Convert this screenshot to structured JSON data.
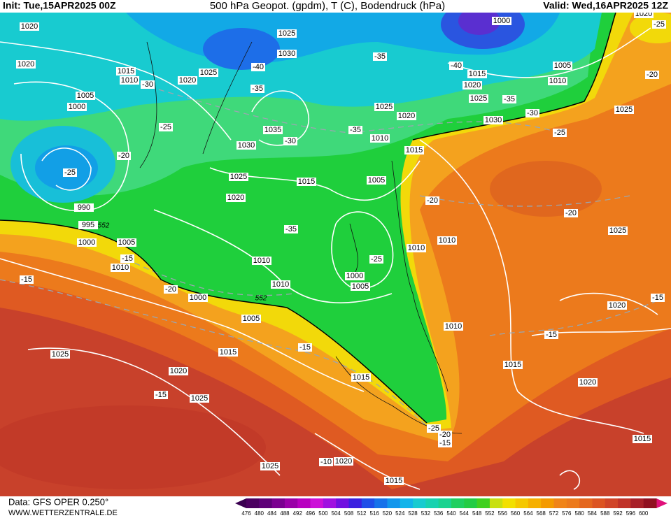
{
  "header": {
    "init": "Init: Tue,15APR2025 00Z",
    "title": "500 hPa Geopot. (gpdm), T (C), Bodendruck (hPa)",
    "valid": "Valid: Wed,16APR2025 12Z"
  },
  "footer": {
    "source": "Data: GFS OPER 0.250°",
    "site": "WWW.WETTERZENTRALE.DE"
  },
  "colorbar": {
    "labels": [
      "476",
      "480",
      "484",
      "488",
      "492",
      "496",
      "500",
      "504",
      "508",
      "512",
      "516",
      "520",
      "524",
      "528",
      "532",
      "536",
      "540",
      "544",
      "548",
      "552",
      "556",
      "560",
      "564",
      "568",
      "572",
      "576",
      "580",
      "584",
      "588",
      "592",
      "596",
      "600"
    ]
  },
  "map": {
    "pressure_labels": [
      "1020",
      "1025",
      "1030",
      "1000",
      "1020",
      "1020",
      "1015",
      "1010",
      "1025",
      "1020",
      "1005",
      "1015",
      "1010",
      "1020",
      "1025",
      "1005",
      "1000",
      "1025",
      "1020",
      "1030",
      "1025",
      "1035",
      "1030",
      "1010",
      "1015",
      "1025",
      "1015",
      "1005",
      "1020",
      "990",
      "995",
      "1025",
      "1010",
      "1000",
      "1005",
      "1010",
      "1010",
      "1010",
      "1000",
      "1005",
      "1010",
      "1000",
      "1020",
      "1005",
      "1010",
      "1015",
      "1025",
      "1015",
      "1020",
      "1015",
      "1020",
      "1025",
      "1015",
      "1025",
      "1020",
      "1015"
    ],
    "temperature_labels": [
      "-25",
      "-20",
      "-35",
      "-40",
      "-40",
      "-30",
      "-35",
      "-35",
      "-30",
      "-25",
      "-25",
      "-35",
      "-30",
      "-20",
      "-25",
      "-20",
      "-20",
      "-35",
      "-25",
      "-15",
      "-15",
      "-20",
      "-15",
      "-15",
      "-15",
      "-15",
      "-25",
      "-20",
      "-15",
      "-10"
    ],
    "geopotential_labels": [
      "552",
      "552"
    ]
  }
}
